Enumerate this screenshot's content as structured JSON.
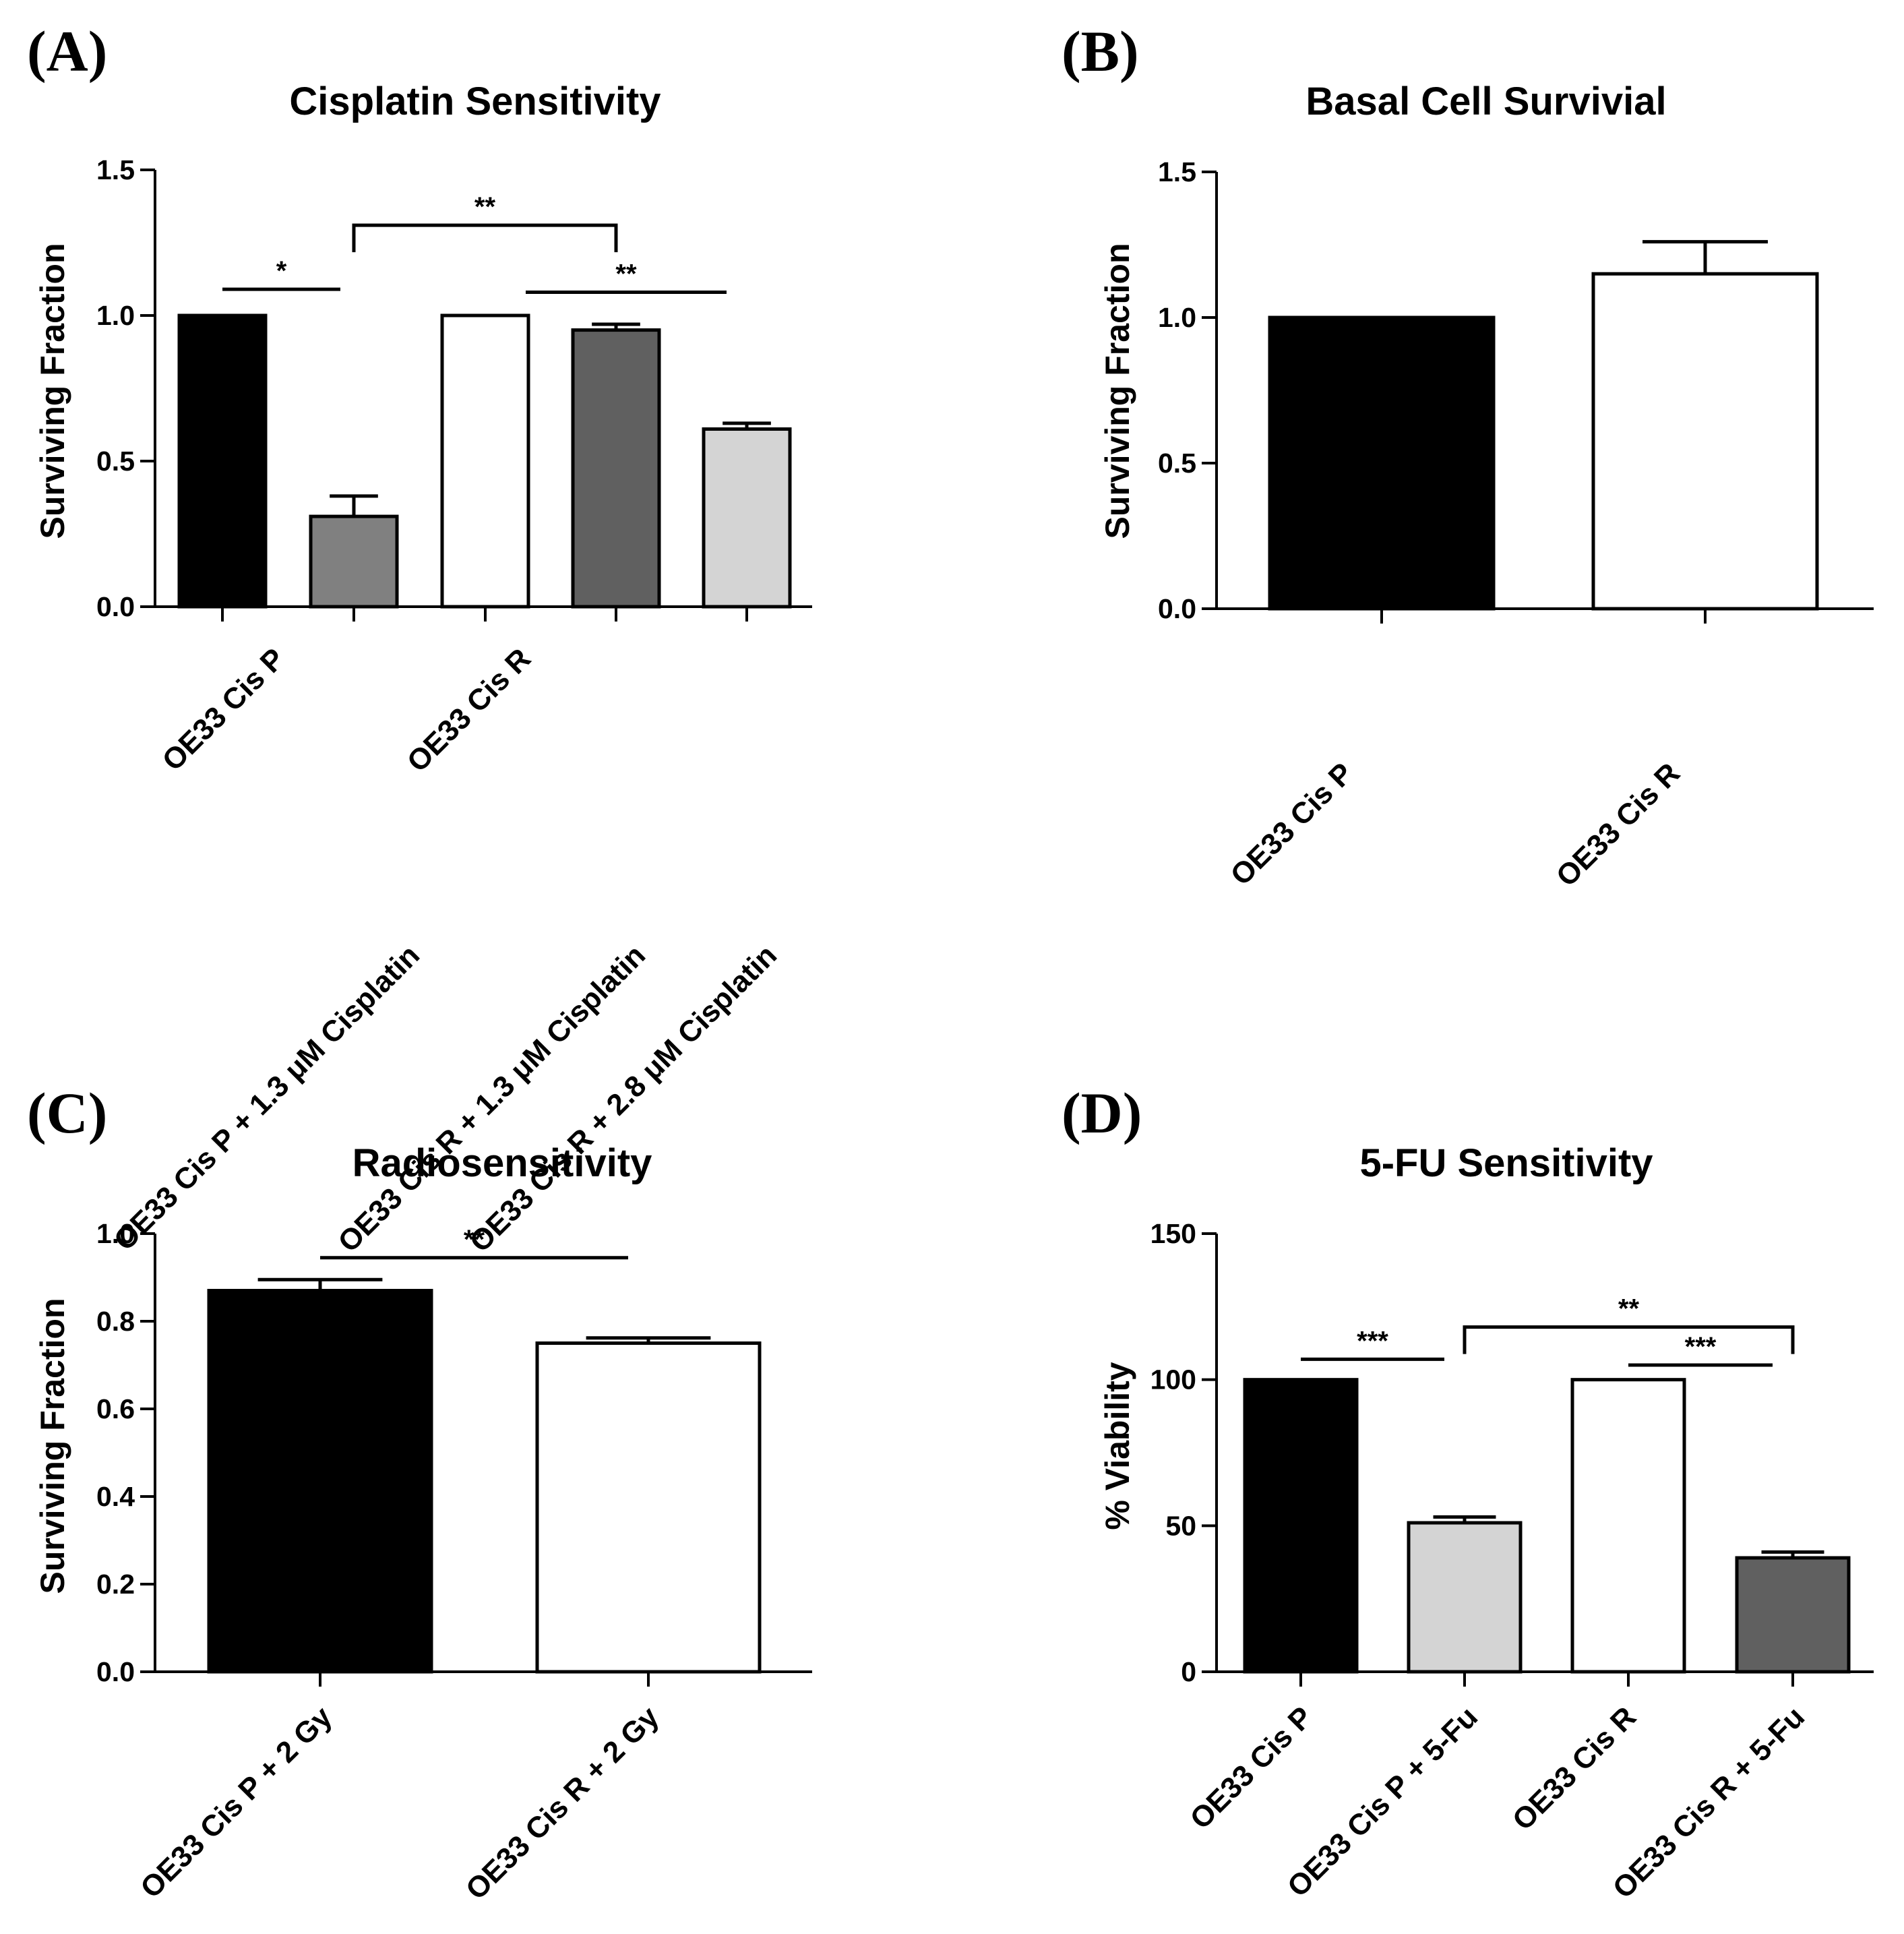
{
  "chart_data": [
    {
      "type": "bar",
      "panel": "(A)",
      "title": "Cisplatin Sensitivity",
      "ylabel": "Surviving Fraction",
      "ylim": [
        0,
        1.5
      ],
      "yticks": [
        "0.0",
        "0.5",
        "1.0",
        "1.5"
      ],
      "categories": [
        "OE33 Cis P",
        "OE33 Cis P + 1.3 μM Cisplatin",
        "OE33 Cis R",
        "OE33 Cis R + 1.3 μM Cisplatin",
        "OE33 Cis R + 2.8 μM Cisplatin"
      ],
      "values": [
        1.0,
        0.31,
        1.0,
        0.95,
        0.61
      ],
      "errors": [
        0,
        0.07,
        0,
        0.02,
        0.02
      ],
      "colors": [
        "#000000",
        "#808080",
        "#ffffff",
        "#606060",
        "#d4d4d4"
      ],
      "significance": [
        {
          "label": "*",
          "from": 0,
          "to": 1,
          "y": 1.09,
          "style": "line"
        },
        {
          "label": "**",
          "from": 1,
          "to": 3,
          "y": 1.31,
          "style": "bracket"
        },
        {
          "label": "**",
          "from": 2,
          "to": 4,
          "y": 1.08,
          "style": "line"
        }
      ]
    },
    {
      "type": "bar",
      "panel": "(B)",
      "title": "Basal Cell Survivial",
      "ylabel": "Surviving Fraction",
      "ylim": [
        0,
        1.5
      ],
      "yticks": [
        "0.0",
        "0.5",
        "1.0",
        "1.5"
      ],
      "categories": [
        "OE33 Cis P",
        "OE33 Cis R"
      ],
      "values": [
        1.0,
        1.15
      ],
      "errors": [
        0,
        0.11
      ],
      "colors": [
        "#000000",
        "#ffffff"
      ],
      "significance": []
    },
    {
      "type": "bar",
      "panel": "(C)",
      "title": "Radiosensitivity",
      "ylabel": "Surviving Fraction",
      "ylim": [
        0,
        1.0
      ],
      "yticks": [
        "0.0",
        "0.2",
        "0.4",
        "0.6",
        "0.8",
        "1.0"
      ],
      "categories": [
        "OE33 Cis P + 2 Gy",
        "OE33 Cis R +  2 Gy"
      ],
      "values": [
        0.87,
        0.75
      ],
      "errors": [
        0.025,
        0.012
      ],
      "colors": [
        "#000000",
        "#ffffff"
      ],
      "significance": [
        {
          "label": "**",
          "from": 0,
          "to": 1,
          "y": 0.945,
          "style": "line"
        }
      ]
    },
    {
      "type": "bar",
      "panel": "(D)",
      "title": "5-FU Sensitivity",
      "ylabel": "% Viability",
      "ylim": [
        0,
        150
      ],
      "yticks": [
        "0",
        "50",
        "100",
        "150"
      ],
      "categories": [
        "OE33 Cis P",
        "OE33 Cis P + 5-Fu",
        "OE33 Cis R",
        "OE33 Cis R + 5-Fu"
      ],
      "values": [
        100,
        51,
        100,
        39
      ],
      "errors": [
        0,
        2,
        0,
        2
      ],
      "colors": [
        "#000000",
        "#d4d4d4",
        "#ffffff",
        "#606060"
      ],
      "significance": [
        {
          "label": "***",
          "from": 0,
          "to": 1,
          "y": 107,
          "style": "line"
        },
        {
          "label": "**",
          "from": 1,
          "to": 3,
          "y": 118,
          "style": "bracket"
        },
        {
          "label": "***",
          "from": 2,
          "to": 3,
          "y": 105,
          "style": "line"
        }
      ]
    }
  ]
}
